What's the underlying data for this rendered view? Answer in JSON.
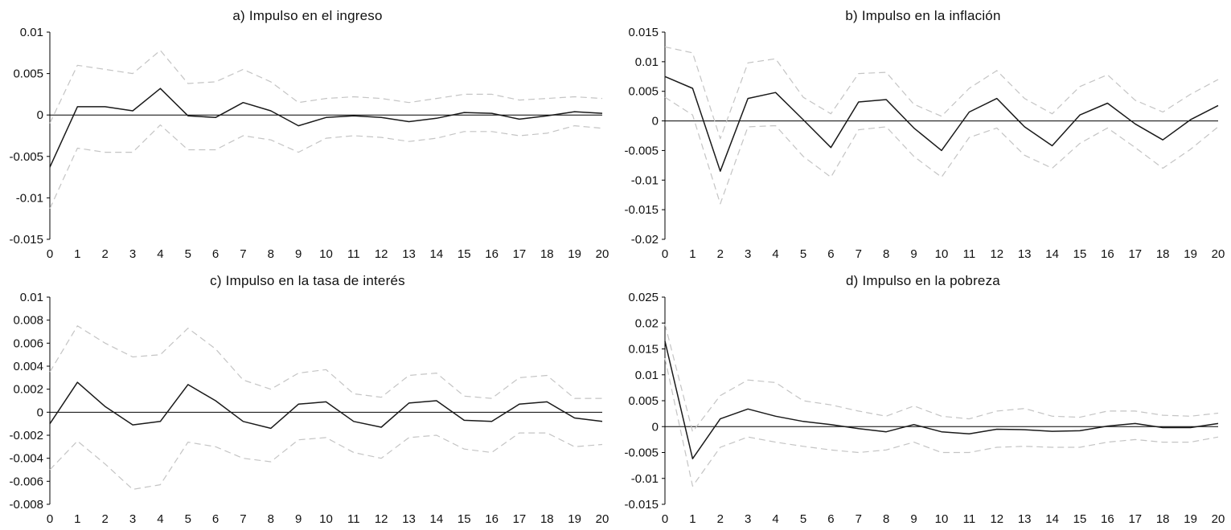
{
  "page": {
    "background": "#ffffff",
    "axis_color": "#000000",
    "response_line_color": "#1a1a1a",
    "band_line_color": "#c4c4c4"
  },
  "chart_data": [
    {
      "type": "line",
      "title": "a)  Impulso en el ingreso",
      "xlabel": "",
      "ylabel": "",
      "grid": false,
      "legend": "none",
      "x": [
        0,
        1,
        2,
        3,
        4,
        5,
        6,
        7,
        8,
        9,
        10,
        11,
        12,
        13,
        14,
        15,
        16,
        17,
        18,
        19,
        20
      ],
      "ylim": [
        -0.015,
        0.01
      ],
      "yticks": [
        0.01,
        0.005,
        0,
        -0.005,
        -0.01,
        -0.015
      ],
      "series": [
        {
          "name": "respuesta",
          "style": "solid",
          "color": "#1a1a1a",
          "values": [
            -0.0063,
            0.001,
            0.001,
            0.0005,
            0.0032,
            -0.0001,
            -0.0003,
            0.0015,
            0.0005,
            -0.0013,
            -0.0003,
            -0.0001,
            -0.0003,
            -0.0008,
            -0.0004,
            0.0003,
            0.0002,
            -0.0005,
            -0.0001,
            0.0004,
            0.0002
          ]
        },
        {
          "name": "banda-superior",
          "style": "dashed",
          "color": "#c4c4c4",
          "values": [
            -0.001,
            0.006,
            0.0055,
            0.005,
            0.0078,
            0.0038,
            0.004,
            0.0055,
            0.004,
            0.0015,
            0.002,
            0.0022,
            0.002,
            0.0015,
            0.002,
            0.0025,
            0.0025,
            0.0018,
            0.002,
            0.0022,
            0.002
          ]
        },
        {
          "name": "banda-inferior",
          "style": "dashed",
          "color": "#c4c4c4",
          "values": [
            -0.0113,
            -0.004,
            -0.0045,
            -0.0045,
            -0.0012,
            -0.0042,
            -0.0042,
            -0.0025,
            -0.003,
            -0.0045,
            -0.0028,
            -0.0025,
            -0.0027,
            -0.0032,
            -0.0028,
            -0.002,
            -0.002,
            -0.0025,
            -0.0022,
            -0.0013,
            -0.0016
          ]
        }
      ]
    },
    {
      "type": "line",
      "title": "b) Impulso en la inflación",
      "xlabel": "",
      "ylabel": "",
      "grid": false,
      "legend": "none",
      "x": [
        0,
        1,
        2,
        3,
        4,
        5,
        6,
        7,
        8,
        9,
        10,
        11,
        12,
        13,
        14,
        15,
        16,
        17,
        18,
        19,
        20
      ],
      "ylim": [
        -0.02,
        0.015
      ],
      "yticks": [
        0.015,
        0.01,
        0.005,
        0,
        -0.005,
        -0.01,
        -0.015,
        -0.02
      ],
      "series": [
        {
          "name": "respuesta",
          "style": "solid",
          "color": "#1a1a1a",
          "values": [
            0.0075,
            0.0055,
            -0.0085,
            0.0038,
            0.0048,
            0.0002,
            -0.0045,
            0.0032,
            0.0036,
            -0.0012,
            -0.005,
            0.0015,
            0.0038,
            -0.001,
            -0.0042,
            0.001,
            0.003,
            -0.0005,
            -0.0032,
            0.0002,
            0.0026
          ]
        },
        {
          "name": "banda-superior",
          "style": "dashed",
          "color": "#c4c4c4",
          "values": [
            0.0125,
            0.0115,
            -0.003,
            0.0098,
            0.0105,
            0.004,
            0.0012,
            0.008,
            0.0082,
            0.0028,
            0.0008,
            0.0055,
            0.0085,
            0.0038,
            0.0012,
            0.0058,
            0.0078,
            0.0035,
            0.0015,
            0.0045,
            0.007
          ]
        },
        {
          "name": "banda-inferior",
          "style": "dashed",
          "color": "#c4c4c4",
          "values": [
            0.004,
            0.001,
            -0.014,
            -0.001,
            -0.0008,
            -0.006,
            -0.0095,
            -0.0015,
            -0.001,
            -0.006,
            -0.0095,
            -0.0028,
            -0.0012,
            -0.0058,
            -0.008,
            -0.0038,
            -0.0012,
            -0.0045,
            -0.008,
            -0.0048,
            -0.001
          ]
        }
      ]
    },
    {
      "type": "line",
      "title": "c) Impulso en la tasa de interés",
      "xlabel": "",
      "ylabel": "",
      "grid": false,
      "legend": "none",
      "x": [
        0,
        1,
        2,
        3,
        4,
        5,
        6,
        7,
        8,
        9,
        10,
        11,
        12,
        13,
        14,
        15,
        16,
        17,
        18,
        19,
        20
      ],
      "ylim": [
        -0.008,
        0.01
      ],
      "yticks": [
        0.01,
        0.008,
        0.006,
        0.004,
        0.002,
        0,
        -0.002,
        -0.004,
        -0.006,
        -0.008
      ],
      "series": [
        {
          "name": "respuesta",
          "style": "solid",
          "color": "#1a1a1a",
          "values": [
            -0.001,
            0.0026,
            0.0005,
            -0.0011,
            -0.0008,
            0.0024,
            0.001,
            -0.0008,
            -0.0014,
            0.0007,
            0.0009,
            -0.0008,
            -0.0013,
            0.0008,
            0.001,
            -0.0007,
            -0.0008,
            0.0007,
            0.0009,
            -0.0005,
            -0.0008
          ]
        },
        {
          "name": "banda-superior",
          "style": "dashed",
          "color": "#c4c4c4",
          "values": [
            0.0035,
            0.0075,
            0.006,
            0.0048,
            0.005,
            0.0073,
            0.0055,
            0.0028,
            0.002,
            0.0034,
            0.0037,
            0.0016,
            0.0013,
            0.0032,
            0.0034,
            0.0014,
            0.0012,
            0.003,
            0.0032,
            0.0012,
            0.0012
          ]
        },
        {
          "name": "banda-inferior",
          "style": "dashed",
          "color": "#c4c4c4",
          "values": [
            -0.005,
            -0.0025,
            -0.0045,
            -0.0067,
            -0.0063,
            -0.0026,
            -0.003,
            -0.004,
            -0.0043,
            -0.0024,
            -0.0022,
            -0.0035,
            -0.004,
            -0.0022,
            -0.002,
            -0.0032,
            -0.0035,
            -0.0018,
            -0.0018,
            -0.003,
            -0.0028
          ]
        }
      ]
    },
    {
      "type": "line",
      "title": "d) Impulso en la pobreza",
      "xlabel": "",
      "ylabel": "",
      "grid": false,
      "legend": "none",
      "x": [
        0,
        1,
        2,
        3,
        4,
        5,
        6,
        7,
        8,
        9,
        10,
        11,
        12,
        13,
        14,
        15,
        16,
        17,
        18,
        19,
        20
      ],
      "ylim": [
        -0.015,
        0.025
      ],
      "yticks": [
        0.025,
        0.02,
        0.015,
        0.01,
        0.005,
        0,
        -0.005,
        -0.01,
        -0.015
      ],
      "series": [
        {
          "name": "respuesta",
          "style": "solid",
          "color": "#1a1a1a",
          "values": [
            0.0165,
            -0.0062,
            0.0015,
            0.0034,
            0.002,
            0.001,
            0.0004,
            -0.0004,
            -0.001,
            0.0004,
            -0.001,
            -0.0014,
            -0.0005,
            -0.0006,
            -0.0009,
            -0.0008,
            0.0001,
            0.0006,
            -0.0002,
            -0.0002,
            0.0006
          ]
        },
        {
          "name": "banda-superior",
          "style": "dashed",
          "color": "#c4c4c4",
          "values": [
            0.0198,
            -0.001,
            0.006,
            0.009,
            0.0085,
            0.005,
            0.0042,
            0.003,
            0.002,
            0.004,
            0.002,
            0.0015,
            0.003,
            0.0035,
            0.002,
            0.0018,
            0.003,
            0.003,
            0.0022,
            0.002,
            0.0026
          ]
        },
        {
          "name": "banda-inferior",
          "style": "dashed",
          "color": "#c4c4c4",
          "values": [
            0.0132,
            -0.0115,
            -0.004,
            -0.002,
            -0.003,
            -0.0038,
            -0.0045,
            -0.005,
            -0.0045,
            -0.003,
            -0.005,
            -0.005,
            -0.004,
            -0.0038,
            -0.004,
            -0.004,
            -0.003,
            -0.0025,
            -0.003,
            -0.003,
            -0.002
          ]
        }
      ]
    }
  ]
}
